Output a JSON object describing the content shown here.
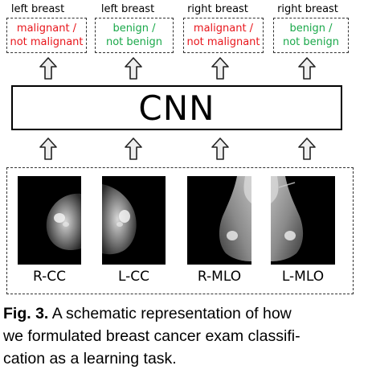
{
  "colors": {
    "malignant": "#e8151b",
    "benign": "#1aa84a"
  },
  "outputs": [
    {
      "header": "left breast",
      "line1": "malignant /",
      "line2": "not malignant",
      "color": "#e8151b"
    },
    {
      "header": "left breast",
      "line1": "benign /",
      "line2": "not benign",
      "color": "#1aa84a"
    },
    {
      "header": "right breast",
      "line1": "malignant /",
      "line2": "not malignant",
      "color": "#e8151b"
    },
    {
      "header": "right breast",
      "line1": "benign /",
      "line2": "not benign",
      "color": "#1aa84a"
    }
  ],
  "cnn_label": "CNN",
  "views": [
    "R-CC",
    "L-CC",
    "R-MLO",
    "L-MLO"
  ],
  "caption": {
    "fig": "Fig. 3.",
    "line1_rest": "A schematic representation of how",
    "line2": "we formulated breast cancer exam classifi-",
    "line3": "cation as a learning task."
  }
}
